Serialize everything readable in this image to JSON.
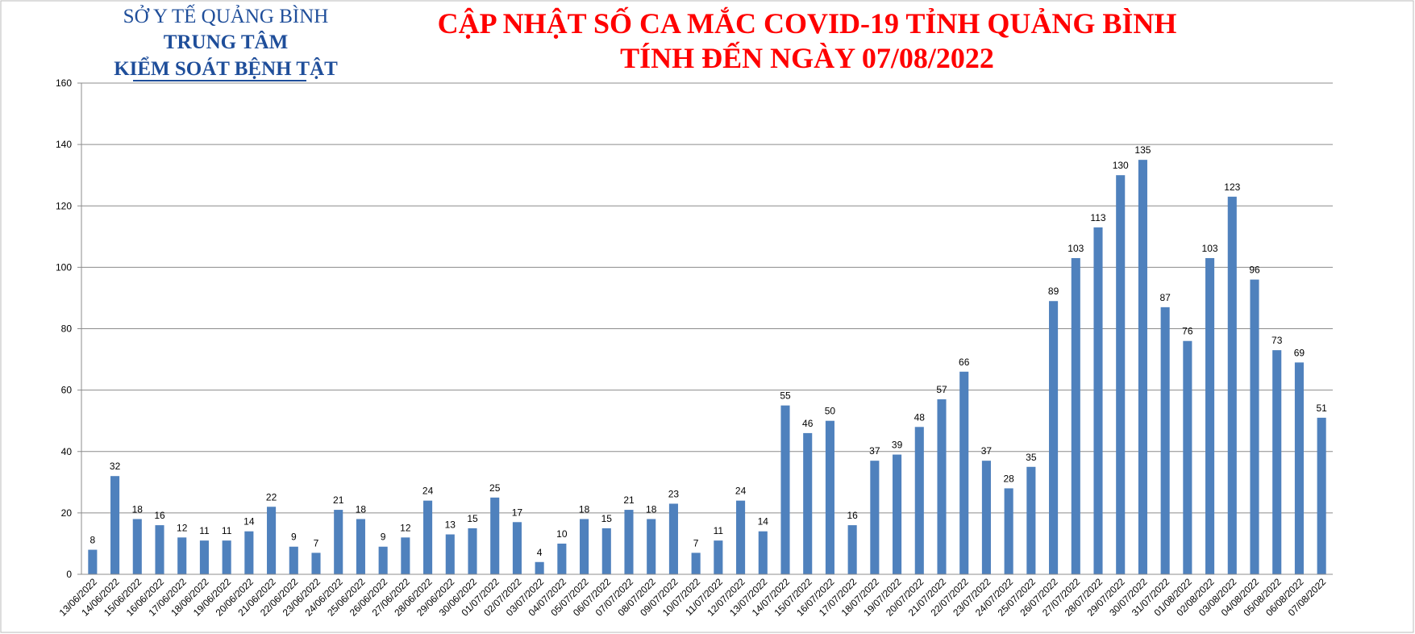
{
  "chart_data": {
    "type": "bar",
    "organization": [
      "SỞ Y TẾ QUẢNG BÌNH",
      "TRUNG TÂM",
      "KIỂM SOÁT BỆNH TẬT"
    ],
    "title": [
      "CẬP NHẬT SỐ CA MẮC COVID-19 TỈNH QUẢNG BÌNH",
      "TÍNH ĐẾN NGÀY 07/08/2022"
    ],
    "categories": [
      "13/06/2022",
      "14/06/2022",
      "15/06/2022",
      "16/06/2022",
      "17/06/2022",
      "18/06/2022",
      "19/06/2022",
      "20/06/2022",
      "21/06/2022",
      "22/06/2022",
      "23/06/2022",
      "24/06/2022",
      "25/06/2022",
      "26/06/2022",
      "27/06/2022",
      "28/06/2022",
      "29/06/2022",
      "30/06/2022",
      "01/07/2022",
      "02/07/2022",
      "03/07/2022",
      "04/07/2022",
      "05/07/2022",
      "06/07/2022",
      "07/07/2022",
      "08/07/2022",
      "09/07/2022",
      "10/07/2022",
      "11/07/2022",
      "12/07/2022",
      "13/07/2022",
      "14/07/2022",
      "15/07/2022",
      "16/07/2022",
      "17/07/2022",
      "18/07/2022",
      "19/07/2022",
      "20/07/2022",
      "21/07/2022",
      "22/07/2022",
      "23/07/2022",
      "24/07/2022",
      "25/07/2022",
      "26/07/2022",
      "27/07/2022",
      "28/07/2022",
      "29/07/2022",
      "30/07/2022",
      "31/07/2022",
      "01/08/2022",
      "02/08/2022",
      "03/08/2022",
      "04/08/2022",
      "05/08/2022",
      "06/08/2022",
      "07/08/2022"
    ],
    "values": [
      8,
      32,
      18,
      16,
      12,
      11,
      11,
      14,
      22,
      9,
      7,
      21,
      18,
      9,
      12,
      24,
      13,
      15,
      25,
      17,
      4,
      10,
      18,
      15,
      21,
      18,
      23,
      7,
      11,
      24,
      14,
      55,
      46,
      50,
      16,
      37,
      39,
      48,
      57,
      66,
      37,
      28,
      35,
      89,
      103,
      113,
      130,
      135,
      87,
      76,
      103,
      123,
      96,
      73,
      69,
      51
    ],
    "color": "#4f81bd",
    "ylim": [
      0,
      160
    ],
    "yticks": [
      0,
      20,
      40,
      60,
      80,
      100,
      120,
      140,
      160
    ],
    "grid": true
  }
}
